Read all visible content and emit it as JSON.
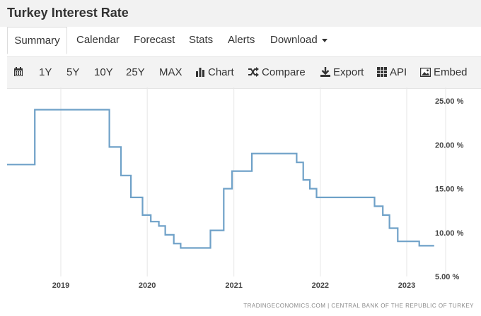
{
  "page": {
    "title": "Turkey Interest Rate"
  },
  "tabs": [
    {
      "label": "Summary",
      "active": true
    },
    {
      "label": "Calendar"
    },
    {
      "label": "Forecast"
    },
    {
      "label": "Stats"
    },
    {
      "label": "Alerts"
    },
    {
      "label": "Download"
    }
  ],
  "toolbar": {
    "calendar_icon": "calendar-icon",
    "ranges": [
      "1Y",
      "5Y",
      "10Y",
      "25Y",
      "MAX"
    ],
    "chart": "Chart",
    "compare": "Compare",
    "export": "Export",
    "api": "API",
    "embed": "Embed"
  },
  "colors": {
    "line": "#6fa1c8",
    "grid": "#e6e6e6",
    "toolbar_bg": "#f3f3f3",
    "title_bg": "#f2f2f2"
  },
  "chart_data": {
    "type": "line",
    "step": true,
    "title": "",
    "xlabel": "",
    "ylabel": "",
    "x_ticks": [
      "2019",
      "2020",
      "2021",
      "2022",
      "2023"
    ],
    "y_ticks": [
      "5.00 %",
      "10.00 %",
      "15.00 %",
      "20.00 %",
      "25.00 %"
    ],
    "ylim": [
      5,
      25
    ],
    "grid": {
      "vertical": true,
      "horizontal": false
    },
    "series": [
      {
        "values": [
          {
            "x": "2018-06-01",
            "y": 17.75
          },
          {
            "x": "2018-09-13",
            "y": 24
          },
          {
            "x": "2019-07-25",
            "y": 19.75
          },
          {
            "x": "2019-09-12",
            "y": 16.5
          },
          {
            "x": "2019-10-24",
            "y": 14
          },
          {
            "x": "2019-12-12",
            "y": 12
          },
          {
            "x": "2020-01-16",
            "y": 11.25
          },
          {
            "x": "2020-02-19",
            "y": 10.75
          },
          {
            "x": "2020-03-17",
            "y": 9.75
          },
          {
            "x": "2020-04-22",
            "y": 8.75
          },
          {
            "x": "2020-05-21",
            "y": 8.25
          },
          {
            "x": "2020-09-24",
            "y": 10.25
          },
          {
            "x": "2020-11-19",
            "y": 15
          },
          {
            "x": "2020-12-24",
            "y": 17
          },
          {
            "x": "2021-03-18",
            "y": 19
          },
          {
            "x": "2021-09-23",
            "y": 18
          },
          {
            "x": "2021-10-21",
            "y": 16
          },
          {
            "x": "2021-11-18",
            "y": 15
          },
          {
            "x": "2021-12-16",
            "y": 14
          },
          {
            "x": "2022-08-18",
            "y": 13
          },
          {
            "x": "2022-09-22",
            "y": 12
          },
          {
            "x": "2022-10-20",
            "y": 10.5
          },
          {
            "x": "2022-11-24",
            "y": 9
          },
          {
            "x": "2023-02-23",
            "y": 8.5
          },
          {
            "x": "2023-04-27",
            "y": 8.5
          }
        ]
      }
    ],
    "source": "TRADINGECONOMICS.COM | CENTRAL BANK OF THE REPUBLIC OF TURKEY"
  }
}
